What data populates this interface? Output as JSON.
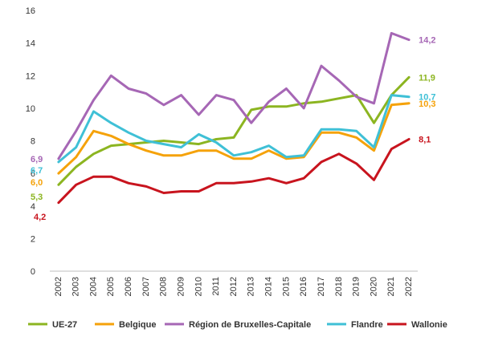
{
  "chart_data": {
    "type": "line",
    "title": "",
    "xlabel": "",
    "ylabel": "",
    "ylim": [
      0,
      16
    ],
    "yticks": [
      0,
      2,
      4,
      6,
      8,
      10,
      12,
      14,
      16
    ],
    "grid": false,
    "legend_position": "bottom",
    "x": [
      "2002",
      "2003",
      "2004",
      "2005",
      "2006",
      "2007",
      "2008",
      "2009",
      "2010",
      "2011",
      "2012",
      "2013",
      "2014",
      "2015",
      "2016",
      "2017",
      "2018",
      "2019",
      "2020",
      "2021",
      "2022"
    ],
    "series": [
      {
        "name": "UE-27",
        "color": "#8cb521",
        "values": [
          5.3,
          6.4,
          7.2,
          7.7,
          7.8,
          7.9,
          8.0,
          7.9,
          7.8,
          8.1,
          8.2,
          9.9,
          10.1,
          10.1,
          10.3,
          10.4,
          10.6,
          10.8,
          9.1,
          10.8,
          11.9
        ],
        "start_label": "5,3",
        "end_label": "11,9"
      },
      {
        "name": "Belgique",
        "color": "#f5a20a",
        "values": [
          6.0,
          7.0,
          8.6,
          8.3,
          7.8,
          7.4,
          7.1,
          7.1,
          7.4,
          7.4,
          6.9,
          6.9,
          7.4,
          6.9,
          7.0,
          8.5,
          8.5,
          8.2,
          7.4,
          10.2,
          10.3
        ],
        "start_label": "6,0",
        "end_label": "10,3"
      },
      {
        "name": "Région de Bruxelles-Capitale",
        "color": "#a667b5",
        "values": [
          6.9,
          8.6,
          10.5,
          12.0,
          11.2,
          10.9,
          10.2,
          10.8,
          9.6,
          10.8,
          10.5,
          9.1,
          10.4,
          11.2,
          10.0,
          12.6,
          11.7,
          10.7,
          10.3,
          14.6,
          14.2
        ],
        "start_label": "6,9",
        "end_label": "14,2"
      },
      {
        "name": "Flandre",
        "color": "#3fc0d6",
        "values": [
          6.7,
          7.6,
          9.8,
          9.1,
          8.5,
          8.0,
          7.8,
          7.6,
          8.4,
          7.9,
          7.1,
          7.3,
          7.7,
          7.0,
          7.1,
          8.7,
          8.7,
          8.6,
          7.6,
          10.8,
          10.7
        ],
        "start_label": "6,7",
        "end_label": "10,7"
      },
      {
        "name": "Wallonie",
        "color": "#c8141e",
        "values": [
          4.2,
          5.3,
          5.8,
          5.8,
          5.4,
          5.2,
          4.8,
          4.9,
          4.9,
          5.4,
          5.4,
          5.5,
          5.7,
          5.4,
          5.7,
          6.7,
          7.2,
          6.6,
          5.6,
          7.5,
          8.1
        ],
        "start_label": "4,2",
        "end_label": "8,1"
      }
    ]
  }
}
